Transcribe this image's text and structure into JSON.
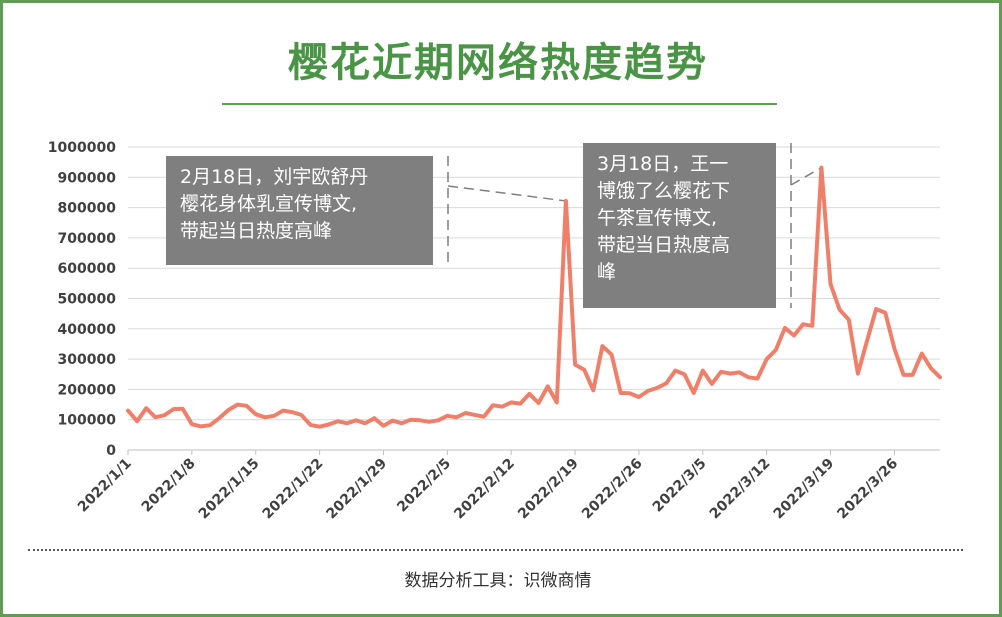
{
  "title": "樱花近期网络热度趋势",
  "source": "数据分析工具：识微商情",
  "colors": {
    "line": "#f07f6a",
    "frame": "#5e9e53",
    "title": "#4a9445",
    "callout_bg": "#7f7f7f"
  },
  "annotations": [
    {
      "id": "a1",
      "text": "2月18日，刘宇欧舒丹\n樱花身体乳宣传博文,\n带起当日热度高峰",
      "date": "2022/2/18"
    },
    {
      "id": "a2",
      "text": "3月18日，王一\n博饿了么樱花下\n午茶宣传博文,\n带起当日热度高\n峰",
      "date": "2022/3/18"
    }
  ],
  "chart_data": {
    "type": "line",
    "title": "樱花近期网络热度趋势",
    "xlabel": "",
    "ylabel": "",
    "ylim": [
      0,
      1000000
    ],
    "y_ticks": [
      "0",
      "100000",
      "200000",
      "300000",
      "400000",
      "500000",
      "600000",
      "700000",
      "800000",
      "900000",
      "1000000"
    ],
    "x_tick_labels": [
      "2022/1/1",
      "2022/1/8",
      "2022/1/15",
      "2022/1/22",
      "2022/1/29",
      "2022/2/5",
      "2022/2/12",
      "2022/2/19",
      "2022/2/26",
      "2022/3/5",
      "2022/3/12",
      "2022/3/19",
      "2022/3/26"
    ],
    "grid": true,
    "legend": "none",
    "series": [
      {
        "x_start": "2022/1/1",
        "x_end": "2022/4/1",
        "values": [
          130000,
          95000,
          138000,
          108000,
          115000,
          135000,
          136000,
          85000,
          78000,
          82000,
          105000,
          132000,
          150000,
          146000,
          118000,
          108000,
          113000,
          130000,
          125000,
          116000,
          83000,
          77000,
          84000,
          95000,
          88000,
          98000,
          88000,
          105000,
          80000,
          97000,
          88000,
          100000,
          98000,
          93000,
          98000,
          113000,
          108000,
          122000,
          116000,
          110000,
          148000,
          143000,
          157000,
          153000,
          185000,
          155000,
          210000,
          157000,
          822000,
          282000,
          265000,
          197000,
          343000,
          315000,
          188000,
          187000,
          175000,
          195000,
          205000,
          220000,
          262000,
          250000,
          188000,
          262000,
          218000,
          258000,
          252000,
          256000,
          240000,
          236000,
          300000,
          330000,
          403000,
          378000,
          415000,
          410000,
          932000,
          548000,
          463000,
          430000,
          252000,
          360000,
          465000,
          453000,
          335000,
          248000,
          248000,
          318000,
          270000,
          240000
        ]
      }
    ]
  }
}
